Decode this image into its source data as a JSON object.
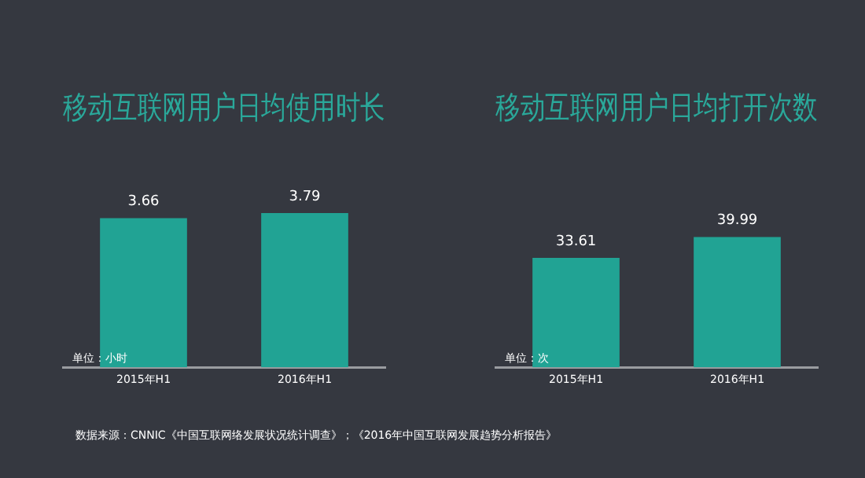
{
  "chart_data": [
    {
      "type": "bar",
      "title": "移动互联网用户日均使用时长",
      "categories": [
        "2015年H1",
        "2016年H1"
      ],
      "values": [
        3.66,
        3.79
      ],
      "color": "#21a394",
      "data_labels": true,
      "annotations": [
        "单位：小时",
        "数据来源：CNNIC《中国互联网络发展状况统计调查》；《2016年中国互联网发展趋势分析报告》"
      ]
    },
    {
      "type": "bar",
      "title": "移动互联网用户日均打开次数",
      "categories": [
        "2015年H1",
        "2016年H1"
      ],
      "values": [
        33.61,
        39.99
      ],
      "color": "#21a394",
      "data_labels": true,
      "annotations": [
        "单位：次"
      ]
    }
  ]
}
